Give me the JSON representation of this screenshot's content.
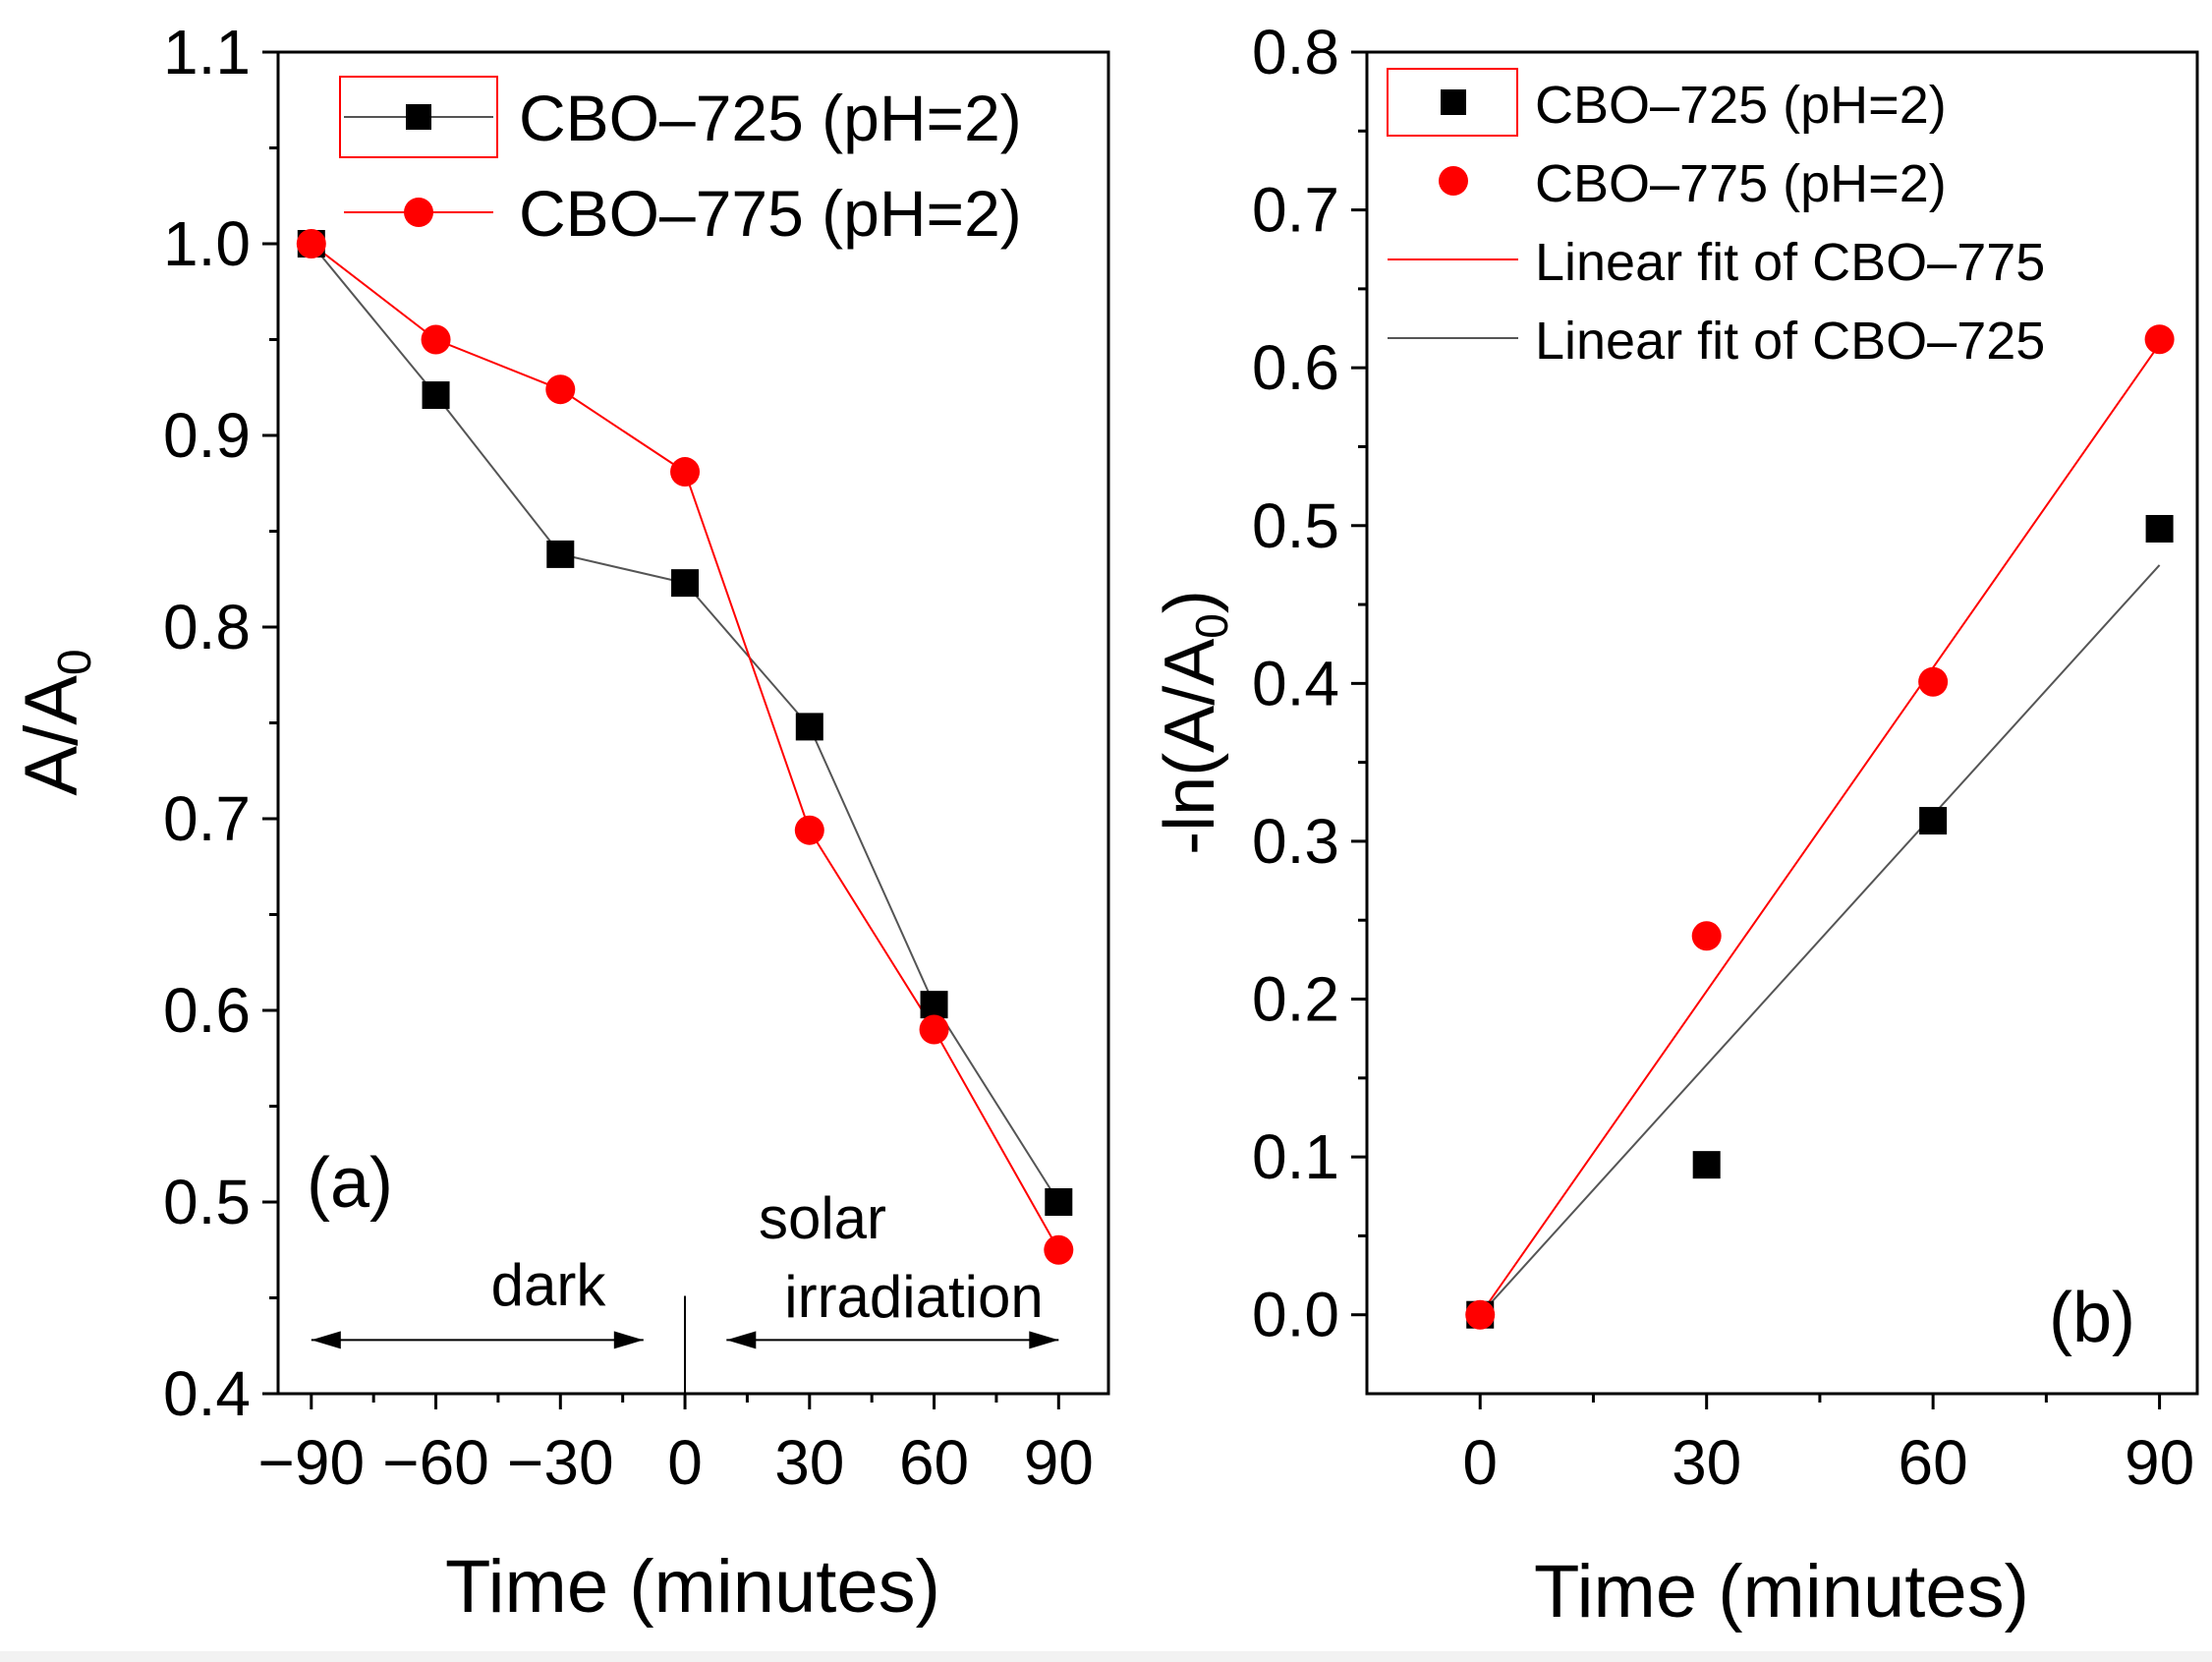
{
  "chart_data": [
    {
      "type": "line",
      "panel_label": "(a)",
      "xlabel": "Time (minutes)",
      "ylabel_main": "A/A",
      "ylabel_sub": "0",
      "xlim": [
        -98,
        102
      ],
      "ylim": [
        0.4,
        1.1
      ],
      "xticks": [
        -90,
        -60,
        -30,
        0,
        30,
        60,
        90
      ],
      "xtick_labels": [
        "−90",
        "−60",
        "−30",
        "0",
        "30",
        "60",
        "90"
      ],
      "yticks": [
        0.4,
        0.5,
        0.6,
        0.7,
        0.8,
        0.9,
        1.0,
        1.1
      ],
      "ytick_labels": [
        "0.4",
        "0.5",
        "0.6",
        "0.7",
        "0.8",
        "0.9",
        "1.0",
        "1.1"
      ],
      "legend_position": "top-right",
      "series": [
        {
          "name": "CBO–725 (pH=2)",
          "marker": "square",
          "color": "#000000",
          "line_color": "#555555",
          "x": [
            -90,
            -60,
            -30,
            0,
            30,
            60,
            90
          ],
          "y": [
            1.0,
            0.921,
            0.838,
            0.823,
            0.748,
            0.603,
            0.5
          ]
        },
        {
          "name": "CBO–775 (pH=2)",
          "marker": "circle",
          "color": "#ff0000",
          "line_color": "#ff0000",
          "x": [
            -90,
            -60,
            -30,
            0,
            30,
            60,
            90
          ],
          "y": [
            1.0,
            0.95,
            0.924,
            0.881,
            0.694,
            0.59,
            0.475
          ]
        }
      ],
      "annotations": {
        "dark": "dark",
        "solar_line1": "solar",
        "solar_line2": "irradiation"
      },
      "dark_arrow": [
        -90,
        -10,
        0.428
      ],
      "solar_arrow": [
        10,
        90,
        0.428
      ],
      "divider": [
        0,
        0.4,
        0.451
      ]
    },
    {
      "type": "scatter",
      "panel_label": "(b)",
      "xlabel": "Time (minutes)",
      "ylabel_main": "-ln(A/A",
      "ylabel_sub": "0",
      "ylabel_end": ")",
      "xlim": [
        -15,
        95
      ],
      "ylim": [
        -0.05,
        0.8
      ],
      "xticks": [
        0,
        30,
        60,
        90
      ],
      "xtick_labels": [
        "0",
        "30",
        "60",
        "90"
      ],
      "yticks": [
        0.0,
        0.1,
        0.2,
        0.3,
        0.4,
        0.5,
        0.6,
        0.7,
        0.8
      ],
      "ytick_labels": [
        "0.0",
        "0.1",
        "0.2",
        "0.3",
        "0.4",
        "0.5",
        "0.6",
        "0.7",
        "0.8"
      ],
      "legend_position": "top-left",
      "series": [
        {
          "name": "CBO–725 (pH=2)",
          "marker": "square",
          "color": "#000000",
          "x": [
            0,
            30,
            60,
            90
          ],
          "y": [
            0.0,
            0.095,
            0.313,
            0.498
          ]
        },
        {
          "name": "CBO–775 (pH=2)",
          "marker": "circle",
          "color": "#ff0000",
          "x": [
            0,
            30,
            60,
            90
          ],
          "y": [
            0.0,
            0.24,
            0.401,
            0.618
          ]
        }
      ],
      "fits": [
        {
          "name": "Linear fit of CBO–775",
          "color": "#ff0000",
          "x": [
            0,
            90
          ],
          "y": [
            0.0,
            0.615
          ]
        },
        {
          "name": "Linear fit of CBO–725",
          "color": "#555555",
          "x": [
            0,
            90
          ],
          "y": [
            0.0,
            0.475
          ]
        }
      ]
    }
  ]
}
